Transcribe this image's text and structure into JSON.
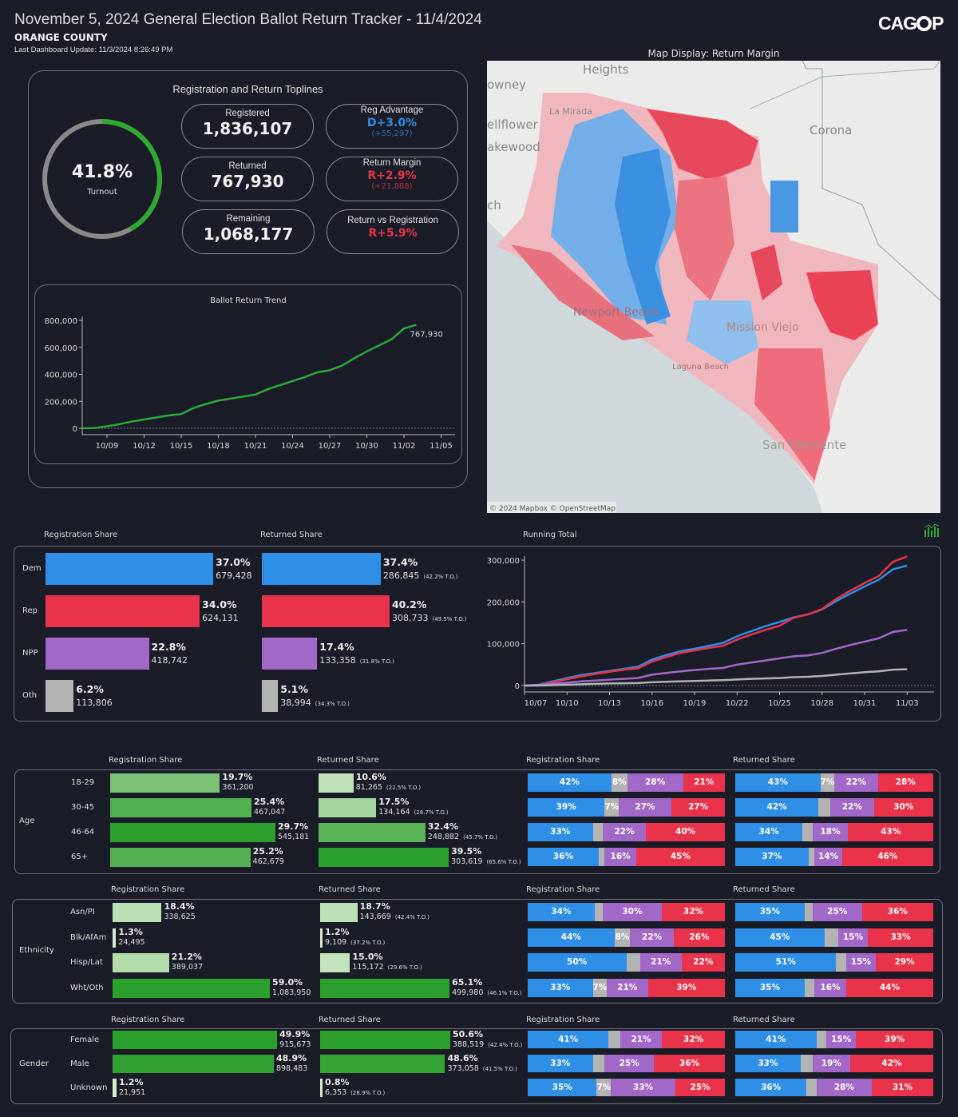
{
  "header": {
    "title": "November 5, 2024 General Election Ballot Return Tracker - 11/4/2024",
    "county": "ORANGE COUNTY",
    "last_update": "Last Dashboard Update: 11/3/2024 8:26:49 PM",
    "logo": "CAGOP"
  },
  "colors": {
    "dem": "#2f8fe6",
    "rep": "#e8334a",
    "npp": "#a268c8",
    "oth": "#b3b3b3",
    "turnout": "#2eaa2e",
    "trend": "#2ea83a"
  },
  "toplines": {
    "title": "Registration and Return Toplines",
    "turnout": {
      "value": "41.8%",
      "label": "Turnout",
      "fraction": 0.418
    },
    "registered": {
      "label": "Registered",
      "value": "1,836,107"
    },
    "returned": {
      "label": "Returned",
      "value": "767,930"
    },
    "remaining": {
      "label": "Remaining",
      "value": "1,068,177"
    },
    "reg_advantage": {
      "label": "Reg Advantage",
      "value": "D+3.0%",
      "sub": "(+55,297)"
    },
    "return_margin": {
      "label": "Return Margin",
      "value": "R+2.9%",
      "sub": "(+21,888)"
    },
    "return_vs_reg": {
      "label": "Return vs Registration",
      "value": "R+5.9%"
    }
  },
  "chart_data": [
    {
      "type": "line",
      "title": "Ballot Return Trend",
      "ylim": [
        0,
        800000
      ],
      "yticks": [
        "800,000",
        "600,000",
        "400,000",
        "200,000",
        "0"
      ],
      "xticks": [
        "10/09",
        "10/12",
        "10/15",
        "10/18",
        "10/21",
        "10/24",
        "10/27",
        "10/30",
        "11/02",
        "11/05"
      ],
      "end_label": "767,930",
      "x": [
        "10/07",
        "10/08",
        "10/09",
        "10/10",
        "10/11",
        "10/12",
        "10/13",
        "10/14",
        "10/15",
        "10/16",
        "10/17",
        "10/18",
        "10/19",
        "10/20",
        "10/21",
        "10/22",
        "10/23",
        "10/24",
        "10/25",
        "10/26",
        "10/27",
        "10/28",
        "10/29",
        "10/30",
        "10/31",
        "11/01",
        "11/02",
        "11/03"
      ],
      "values": [
        0,
        2000,
        15000,
        30000,
        50000,
        65000,
        80000,
        95000,
        105000,
        150000,
        180000,
        205000,
        220000,
        235000,
        250000,
        290000,
        320000,
        350000,
        380000,
        415000,
        430000,
        465000,
        520000,
        570000,
        615000,
        660000,
        740000,
        767930
      ]
    },
    {
      "type": "line",
      "title": "Running Total",
      "ylim": [
        0,
        300000
      ],
      "yticks": [
        "300,000",
        "200,000",
        "100,000",
        "0"
      ],
      "xticks": [
        "10/07",
        "10/10",
        "10/13",
        "10/16",
        "10/19",
        "10/22",
        "10/25",
        "10/28",
        "10/31",
        "11/03"
      ],
      "x": [
        "10/07",
        "10/08",
        "10/09",
        "10/10",
        "10/11",
        "10/12",
        "10/13",
        "10/14",
        "10/15",
        "10/16",
        "10/17",
        "10/18",
        "10/19",
        "10/20",
        "10/21",
        "10/22",
        "10/23",
        "10/24",
        "10/25",
        "10/26",
        "10/27",
        "10/28",
        "10/29",
        "10/30",
        "10/31",
        "11/01",
        "11/02",
        "11/03"
      ],
      "series": [
        {
          "party": "dem",
          "values": [
            0,
            2000,
            10000,
            18000,
            25000,
            30000,
            35000,
            40000,
            45000,
            62000,
            73000,
            82000,
            88000,
            95000,
            102000,
            118000,
            130000,
            142000,
            152000,
            163000,
            170000,
            182000,
            202000,
            220000,
            237000,
            253000,
            278000,
            286845
          ]
        },
        {
          "party": "rep",
          "values": [
            0,
            1000,
            8000,
            15000,
            22000,
            28000,
            33000,
            38000,
            41000,
            57000,
            68000,
            78000,
            84000,
            90000,
            95000,
            110000,
            122000,
            133000,
            143000,
            162000,
            170000,
            183000,
            207000,
            227000,
            245000,
            262000,
            296000,
            308733
          ]
        },
        {
          "party": "npp",
          "values": [
            0,
            1000,
            4000,
            7000,
            10000,
            12000,
            14000,
            16000,
            18000,
            26000,
            30000,
            34000,
            37000,
            40000,
            42000,
            50000,
            55000,
            60000,
            65000,
            70000,
            72000,
            78000,
            88000,
            97000,
            105000,
            113000,
            128000,
            133358
          ]
        },
        {
          "party": "oth",
          "values": [
            0,
            0,
            1000,
            2000,
            3000,
            4000,
            5000,
            5500,
            6000,
            8000,
            9000,
            10000,
            11000,
            12000,
            13000,
            14500,
            16000,
            17000,
            18000,
            20000,
            21000,
            23000,
            26000,
            29000,
            32000,
            34000,
            38000,
            38994
          ]
        }
      ]
    }
  ],
  "map": {
    "title": "Map Display: Return Margin",
    "attribution": "© 2024 Mapbox © OpenStreetMap",
    "places": [
      "Heights",
      "owney",
      "La Mirada",
      "ellflower",
      "akewood",
      "Corona",
      "ch",
      "Newport Beach",
      "Laguna Beach",
      "Mission Viejo",
      "San Clemente"
    ]
  },
  "party": {
    "reg_title": "Registration Share",
    "ret_title": "Returned Share",
    "running_title": "Running Total",
    "rows": [
      {
        "label": "Dem",
        "key": "dem",
        "reg_pct": 37.0,
        "reg_pct_text": "37.0%",
        "reg_count": "679,428",
        "ret_pct": 37.4,
        "ret_pct_text": "37.4%",
        "ret_count": "286,845",
        "ret_to": "(42.2% T.O.)"
      },
      {
        "label": "Rep",
        "key": "rep",
        "reg_pct": 34.0,
        "reg_pct_text": "34.0%",
        "reg_count": "624,131",
        "ret_pct": 40.2,
        "ret_pct_text": "40.2%",
        "ret_count": "308,733",
        "ret_to": "(49.5% T.O.)"
      },
      {
        "label": "NPP",
        "key": "npp",
        "reg_pct": 22.8,
        "reg_pct_text": "22.8%",
        "reg_count": "418,742",
        "ret_pct": 17.4,
        "ret_pct_text": "17.4%",
        "ret_count": "133,358",
        "ret_to": "(31.8% T.O.)"
      },
      {
        "label": "Oth",
        "key": "oth",
        "reg_pct": 6.2,
        "reg_pct_text": "6.2%",
        "reg_count": "113,806",
        "ret_pct": 5.1,
        "ret_pct_text": "5.1%",
        "ret_count": "38,994",
        "ret_to": "(34.3% T.O.)"
      }
    ]
  },
  "demographics": [
    {
      "group": "Age",
      "reg_title": "Registration Share",
      "ret_title": "Returned Share",
      "reg_party_title": "Registration Share",
      "ret_party_title": "Returned Share",
      "rows": [
        {
          "label": "18-29",
          "reg_pct": 19.7,
          "reg_pct_text": "19.7%",
          "reg_count": "361,200",
          "ret_pct": 10.6,
          "ret_pct_text": "10.6%",
          "ret_count": "81,265",
          "ret_to": "(22.5% T.O.)",
          "reg_mix": [
            42,
            8,
            28,
            21
          ],
          "reg_mix_labels": [
            "42%",
            "8%",
            "28%",
            "21%"
          ],
          "ret_mix": [
            43,
            7,
            22,
            28
          ],
          "ret_mix_labels": [
            "43%",
            "7%",
            "22%",
            "28%"
          ]
        },
        {
          "label": "30-45",
          "reg_pct": 25.4,
          "reg_pct_text": "25.4%",
          "reg_count": "467,047",
          "ret_pct": 17.5,
          "ret_pct_text": "17.5%",
          "ret_count": "134,164",
          "ret_to": "(28.7% T.O.)",
          "reg_mix": [
            39,
            7,
            27,
            27
          ],
          "reg_mix_labels": [
            "39%",
            "7%",
            "27%",
            "27%"
          ],
          "ret_mix": [
            42,
            6,
            22,
            30
          ],
          "ret_mix_labels": [
            "42%",
            "",
            "22%",
            "30%"
          ]
        },
        {
          "label": "46-64",
          "reg_pct": 29.7,
          "reg_pct_text": "29.7%",
          "reg_count": "545,181",
          "ret_pct": 32.4,
          "ret_pct_text": "32.4%",
          "ret_count": "248,882",
          "ret_to": "(45.7% T.O.)",
          "reg_mix": [
            33,
            5,
            22,
            40
          ],
          "reg_mix_labels": [
            "33%",
            "",
            "22%",
            "40%"
          ],
          "ret_mix": [
            34,
            5,
            18,
            43
          ],
          "ret_mix_labels": [
            "34%",
            "",
            "18%",
            "43%"
          ]
        },
        {
          "label": "65+",
          "reg_pct": 25.2,
          "reg_pct_text": "25.2%",
          "reg_count": "462,679",
          "ret_pct": 39.5,
          "ret_pct_text": "39.5%",
          "ret_count": "303,619",
          "ret_to": "(65.6% T.O.)",
          "reg_mix": [
            36,
            3,
            16,
            45
          ],
          "reg_mix_labels": [
            "36%",
            "",
            "16%",
            "45%"
          ],
          "ret_mix": [
            37,
            3,
            14,
            46
          ],
          "ret_mix_labels": [
            "37%",
            "",
            "14%",
            "46%"
          ]
        }
      ]
    },
    {
      "group": "Ethnicity",
      "reg_title": "Registration Share",
      "ret_title": "Returned Share",
      "reg_party_title": "Registration Share",
      "ret_party_title": "Returned Share",
      "rows": [
        {
          "label": "Asn/PI",
          "reg_pct": 18.4,
          "reg_pct_text": "18.4%",
          "reg_count": "338,625",
          "ret_pct": 18.7,
          "ret_pct_text": "18.7%",
          "ret_count": "143,669",
          "ret_to": "(42.4% T.O.)",
          "reg_mix": [
            34,
            4,
            30,
            32
          ],
          "reg_mix_labels": [
            "34%",
            "",
            "30%",
            "32%"
          ],
          "ret_mix": [
            35,
            4,
            25,
            36
          ],
          "ret_mix_labels": [
            "35%",
            "",
            "25%",
            "36%"
          ]
        },
        {
          "label": "Blk/AfAm",
          "reg_pct": 1.3,
          "reg_pct_text": "1.3%",
          "reg_count": "24,495",
          "ret_pct": 1.2,
          "ret_pct_text": "1.2%",
          "ret_count": "9,109",
          "ret_to": "(37.2% T.O.)",
          "reg_mix": [
            44,
            8,
            22,
            26
          ],
          "reg_mix_labels": [
            "44%",
            "8%",
            "22%",
            "26%"
          ],
          "ret_mix": [
            45,
            7,
            15,
            33
          ],
          "ret_mix_labels": [
            "45%",
            "",
            "15%",
            "33%"
          ]
        },
        {
          "label": "Hisp/Lat",
          "reg_pct": 21.2,
          "reg_pct_text": "21.2%",
          "reg_count": "389,037",
          "ret_pct": 15.0,
          "ret_pct_text": "15.0%",
          "ret_count": "115,172",
          "ret_to": "(29.6% T.O.)",
          "reg_mix": [
            50,
            7,
            21,
            22
          ],
          "reg_mix_labels": [
            "50%",
            "",
            "21%",
            "22%"
          ],
          "ret_mix": [
            51,
            5,
            15,
            29
          ],
          "ret_mix_labels": [
            "51%",
            "",
            "15%",
            "29%"
          ]
        },
        {
          "label": "Wht/Oth",
          "reg_pct": 59.0,
          "reg_pct_text": "59.0%",
          "reg_count": "1,083,950",
          "ret_pct": 65.1,
          "ret_pct_text": "65.1%",
          "ret_count": "499,980",
          "ret_to": "(46.1% T.O.)",
          "reg_mix": [
            33,
            7,
            21,
            39
          ],
          "reg_mix_labels": [
            "33%",
            "7%",
            "21%",
            "39%"
          ],
          "ret_mix": [
            35,
            5,
            16,
            44
          ],
          "ret_mix_labels": [
            "35%",
            "",
            "16%",
            "44%"
          ]
        }
      ]
    },
    {
      "group": "Gender",
      "reg_title": "Registration Share",
      "ret_title": "Returned Share",
      "reg_party_title": "Registration Share",
      "ret_party_title": "Returned Share",
      "rows": [
        {
          "label": "Female",
          "reg_pct": 49.9,
          "reg_pct_text": "49.9%",
          "reg_count": "915,673",
          "ret_pct": 50.6,
          "ret_pct_text": "50.6%",
          "ret_count": "388,519",
          "ret_to": "(42.4% T.O.)",
          "reg_mix": [
            41,
            6,
            21,
            32
          ],
          "reg_mix_labels": [
            "41%",
            "",
            "21%",
            "32%"
          ],
          "ret_mix": [
            41,
            5,
            15,
            39
          ],
          "ret_mix_labels": [
            "41%",
            "",
            "15%",
            "39%"
          ]
        },
        {
          "label": "Male",
          "reg_pct": 48.9,
          "reg_pct_text": "48.9%",
          "reg_count": "898,483",
          "ret_pct": 48.6,
          "ret_pct_text": "48.6%",
          "ret_count": "373,058",
          "ret_to": "(41.5% T.O.)",
          "reg_mix": [
            33,
            6,
            25,
            36
          ],
          "reg_mix_labels": [
            "33%",
            "",
            "25%",
            "36%"
          ],
          "ret_mix": [
            33,
            6,
            19,
            42
          ],
          "ret_mix_labels": [
            "33%",
            "",
            "19%",
            "42%"
          ]
        },
        {
          "label": "Unknown",
          "reg_pct": 1.2,
          "reg_pct_text": "1.2%",
          "reg_count": "21,951",
          "ret_pct": 0.8,
          "ret_pct_text": "0.8%",
          "ret_count": "6,353",
          "ret_to": "(28.9% T.O.)",
          "reg_mix": [
            35,
            7,
            33,
            25
          ],
          "reg_mix_labels": [
            "35%",
            "7%",
            "33%",
            "25%"
          ],
          "ret_mix": [
            36,
            5,
            28,
            31
          ],
          "ret_mix_labels": [
            "36%",
            "",
            "28%",
            "31%"
          ]
        }
      ]
    }
  ]
}
